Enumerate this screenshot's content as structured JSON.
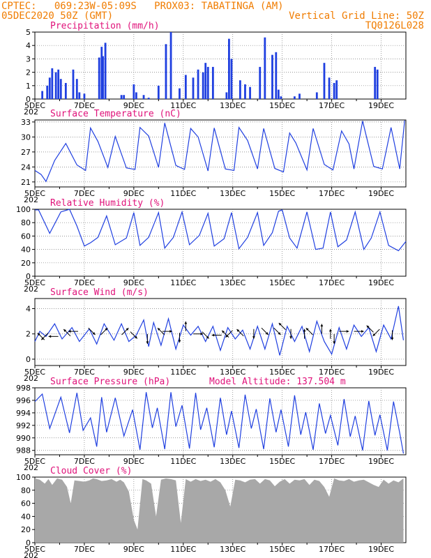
{
  "header": {
    "line1": "CPTEC:   069:23W-05:09S   PROX03: TABATINGA (AM)",
    "line2_left": "05DEC2020 50Z (GMT)",
    "line2_right": "Vertical Grid Line: 50Z",
    "line3_right": "TQ0126L028"
  },
  "colors": {
    "header": "#f07c00",
    "title": "#e0127a",
    "line": "#1f3fe0",
    "cloud": "#a8a8a8"
  },
  "x_axis": {
    "start": "05DEC",
    "end": "20DEC",
    "ticks": [
      "5DEC",
      "7DEC",
      "9DEC",
      "11DEC",
      "13DEC",
      "15DEC",
      "17DEC",
      "19DEC"
    ],
    "year_fragment": "202"
  },
  "chart_data": [
    {
      "type": "bar",
      "title": "Precipitation (mm/h)",
      "ylim": [
        0,
        5
      ],
      "yticks": [
        "0",
        "1",
        "2",
        "3",
        "4",
        "5"
      ],
      "x_days": [
        5.3,
        5.5,
        5.6,
        5.7,
        5.85,
        5.95,
        6.05,
        6.25,
        6.55,
        6.7,
        6.8,
        7.0,
        7.6,
        7.7,
        7.75,
        7.85,
        8.5,
        8.6,
        9.0,
        9.1,
        9.4,
        9.6,
        10.0,
        10.3,
        10.5,
        10.85,
        11.1,
        11.4,
        11.6,
        11.8,
        11.9,
        12.0,
        12.2,
        12.75,
        12.85,
        12.95,
        13.3,
        13.5,
        13.7,
        14.1,
        14.3,
        14.6,
        14.75,
        14.85,
        14.95,
        15.5,
        15.7,
        16.4,
        16.7,
        16.9,
        17.1,
        17.2,
        18.75,
        18.85
      ],
      "values": [
        0.6,
        1.0,
        1.6,
        2.3,
        2.0,
        2.2,
        1.5,
        1.2,
        2.2,
        1.5,
        0.5,
        0.4,
        3.1,
        3.9,
        3.2,
        4.2,
        0.3,
        0.3,
        1.1,
        0.5,
        0.3,
        0.1,
        1.0,
        4.1,
        5.0,
        0.8,
        1.8,
        1.6,
        2.2,
        2.0,
        2.7,
        2.4,
        2.4,
        0.5,
        4.5,
        3.0,
        1.4,
        1.1,
        0.9,
        2.4,
        4.6,
        3.3,
        3.5,
        0.7,
        0.2,
        0.2,
        0.4,
        0.5,
        2.7,
        1.6,
        1.2,
        1.4,
        2.4,
        2.2
      ]
    },
    {
      "type": "line",
      "title": "Surface Temperature (nC)",
      "ylim": [
        20,
        33.4
      ],
      "yticks": [
        "21",
        "24",
        "27",
        "30",
        "33"
      ],
      "x_days": [
        5.0,
        5.25,
        5.45,
        5.8,
        6.25,
        6.7,
        7.05,
        7.25,
        7.55,
        7.95,
        8.25,
        8.7,
        9.05,
        9.25,
        9.6,
        10.0,
        10.25,
        10.7,
        11.05,
        11.3,
        11.6,
        12.0,
        12.25,
        12.7,
        13.05,
        13.25,
        13.6,
        14.0,
        14.25,
        14.7,
        15.05,
        15.3,
        15.55,
        16.0,
        16.25,
        16.7,
        17.05,
        17.4,
        17.7,
        17.9,
        18.25,
        18.7,
        19.05,
        19.4,
        19.75,
        19.95
      ],
      "values": [
        23.3,
        22.5,
        21.1,
        25.3,
        28.7,
        24.4,
        23.3,
        31.8,
        29.1,
        23.9,
        30.1,
        23.8,
        23.5,
        31.9,
        30.2,
        23.9,
        32.8,
        24.3,
        23.5,
        31.7,
        30.0,
        23.2,
        31.8,
        23.6,
        23.3,
        31.9,
        29.3,
        23.6,
        31.7,
        23.7,
        23.0,
        30.8,
        28.8,
        23.4,
        31.7,
        24.5,
        23.4,
        31.2,
        28.6,
        23.6,
        33.2,
        24.1,
        23.6,
        31.9,
        23.6,
        33.3
      ]
    },
    {
      "type": "line",
      "title": "Relative Humidity (%)",
      "ylim": [
        0,
        100
      ],
      "yticks": [
        "0",
        "20",
        "40",
        "60",
        "80",
        "100"
      ],
      "x_days": [
        5.0,
        5.15,
        5.6,
        6.05,
        6.4,
        6.7,
        7.0,
        7.25,
        7.55,
        7.9,
        8.25,
        8.7,
        9.0,
        9.25,
        9.6,
        10.0,
        10.25,
        10.6,
        10.95,
        11.25,
        11.65,
        12.0,
        12.25,
        12.65,
        12.95,
        13.25,
        13.6,
        14.0,
        14.25,
        14.6,
        14.85,
        15.0,
        15.3,
        15.6,
        16.0,
        16.35,
        16.65,
        16.95,
        17.25,
        17.6,
        17.95,
        18.3,
        18.6,
        18.95,
        19.3,
        19.7,
        20.0
      ],
      "values": [
        99,
        99,
        64,
        96,
        100,
        75,
        45,
        50,
        58,
        90,
        47,
        57,
        95,
        46,
        58,
        95,
        42,
        58,
        96,
        47,
        61,
        94,
        45,
        56,
        95,
        41,
        58,
        95,
        46,
        65,
        97,
        99,
        57,
        42,
        96,
        40,
        42,
        96,
        44,
        54,
        96,
        40,
        57,
        96,
        46,
        38,
        52
      ]
    },
    {
      "type": "line",
      "title": "Surface Wind (m/s)",
      "ylim": [
        -0.5,
        4.8
      ],
      "yticks": [
        "0",
        "2",
        "4"
      ],
      "x_days": [
        5.0,
        5.2,
        5.45,
        5.8,
        6.1,
        6.5,
        6.8,
        7.2,
        7.5,
        7.8,
        8.2,
        8.5,
        8.8,
        9.1,
        9.4,
        9.6,
        9.8,
        10.1,
        10.4,
        10.7,
        11.0,
        11.3,
        11.6,
        11.9,
        12.2,
        12.5,
        12.8,
        13.1,
        13.4,
        13.7,
        14.0,
        14.3,
        14.6,
        14.9,
        15.2,
        15.5,
        15.8,
        16.1,
        16.4,
        16.7,
        17.0,
        17.3,
        17.6,
        17.9,
        18.2,
        18.5,
        18.8,
        19.1,
        19.4,
        19.7,
        19.9
      ],
      "values": [
        1.4,
        2.2,
        1.8,
        2.8,
        1.6,
        2.5,
        1.4,
        2.4,
        1.2,
        2.8,
        1.5,
        2.8,
        1.4,
        1.9,
        3.1,
        1.0,
        2.9,
        1.1,
        3.2,
        0.8,
        2.7,
        1.9,
        2.6,
        1.4,
        2.6,
        0.7,
        2.5,
        1.6,
        2.3,
        0.8,
        2.6,
        0.8,
        2.8,
        0.3,
        2.6,
        1.4,
        2.6,
        0.6,
        3.0,
        1.4,
        0.4,
        2.5,
        0.8,
        2.7,
        1.8,
        2.5,
        0.6,
        2.7,
        1.6,
        4.2,
        1.5
      ],
      "arrows": [
        {
          "x": 5.25,
          "speed": 1.8,
          "dir": "NW"
        },
        {
          "x": 5.4,
          "speed": 1.8,
          "dir": "SW"
        },
        {
          "x": 5.75,
          "speed": 1.8,
          "dir": "W"
        },
        {
          "x": 6.3,
          "speed": 2.1,
          "dir": "NW"
        },
        {
          "x": 6.55,
          "speed": 2.2,
          "dir": "W"
        },
        {
          "x": 7.3,
          "speed": 2.2,
          "dir": "SE"
        },
        {
          "x": 7.8,
          "speed": 2.2,
          "dir": "NE"
        },
        {
          "x": 8.65,
          "speed": 2.2,
          "dir": "NE"
        },
        {
          "x": 9.0,
          "speed": 1.9,
          "dir": "SE"
        },
        {
          "x": 9.55,
          "speed": 1.6,
          "dir": "S"
        },
        {
          "x": 10.1,
          "speed": 2.2,
          "dir": "NW"
        },
        {
          "x": 10.35,
          "speed": 2.2,
          "dir": "E"
        },
        {
          "x": 10.85,
          "speed": 1.7,
          "dir": "S"
        },
        {
          "x": 11.1,
          "speed": 2.6,
          "dir": "N"
        },
        {
          "x": 11.6,
          "speed": 2.0,
          "dir": "E"
        },
        {
          "x": 11.9,
          "speed": 1.9,
          "dir": "SE"
        },
        {
          "x": 12.35,
          "speed": 1.9,
          "dir": "W"
        },
        {
          "x": 12.7,
          "speed": 2.0,
          "dir": "NW"
        },
        {
          "x": 12.85,
          "speed": 2.0,
          "dir": "SW"
        },
        {
          "x": 13.3,
          "speed": 2.1,
          "dir": "NW"
        },
        {
          "x": 13.85,
          "speed": 2.0,
          "dir": "S"
        },
        {
          "x": 14.3,
          "speed": 2.2,
          "dir": "SE"
        },
        {
          "x": 14.8,
          "speed": 2.2,
          "dir": "SE"
        },
        {
          "x": 15.0,
          "speed": 2.6,
          "dir": "NW"
        },
        {
          "x": 15.35,
          "speed": 2.0,
          "dir": "S"
        },
        {
          "x": 15.9,
          "speed": 2.0,
          "dir": "N"
        },
        {
          "x": 16.1,
          "speed": 2.2,
          "dir": "NW"
        },
        {
          "x": 16.6,
          "speed": 2.4,
          "dir": "N"
        },
        {
          "x": 16.95,
          "speed": 2.0,
          "dir": "N"
        },
        {
          "x": 17.1,
          "speed": 1.6,
          "dir": "S"
        },
        {
          "x": 17.5,
          "speed": 2.2,
          "dir": "E"
        },
        {
          "x": 18.1,
          "speed": 2.2,
          "dir": "E"
        },
        {
          "x": 18.55,
          "speed": 2.4,
          "dir": "NW"
        },
        {
          "x": 18.8,
          "speed": 2.1,
          "dir": "SW"
        },
        {
          "x": 19.45,
          "speed": 1.9,
          "dir": "S"
        }
      ]
    },
    {
      "type": "line",
      "title": "Surface Pressure (hPa)",
      "subtitle": "Model Altitude: 137.504 m",
      "ylim": [
        987.3,
        998
      ],
      "yticks": [
        "988",
        "990",
        "992",
        "994",
        "996",
        "998"
      ],
      "x_days": [
        5.0,
        5.3,
        5.6,
        6.05,
        6.4,
        6.7,
        6.95,
        7.25,
        7.5,
        7.7,
        7.9,
        8.25,
        8.6,
        8.95,
        9.25,
        9.5,
        9.75,
        9.95,
        10.25,
        10.5,
        10.7,
        10.95,
        11.25,
        11.5,
        11.7,
        11.95,
        12.25,
        12.5,
        12.75,
        12.95,
        13.25,
        13.5,
        13.75,
        13.95,
        14.25,
        14.5,
        14.75,
        14.95,
        15.25,
        15.5,
        15.75,
        15.95,
        16.25,
        16.5,
        16.75,
        16.95,
        17.25,
        17.5,
        17.75,
        17.95,
        18.25,
        18.5,
        18.75,
        18.95,
        19.25,
        19.5,
        19.75,
        19.9
      ],
      "values": [
        995.8,
        997.0,
        991.5,
        996.5,
        990.8,
        997.2,
        991.2,
        993.2,
        988.6,
        996.5,
        990.9,
        996.4,
        990.3,
        994.5,
        988.1,
        997.3,
        991.6,
        994.8,
        988.2,
        997.3,
        991.8,
        995.2,
        988.3,
        997.2,
        991.3,
        994.8,
        988.5,
        996.4,
        990.5,
        994.3,
        988.4,
        996.9,
        991.5,
        994.6,
        988.2,
        996.3,
        990.9,
        994.5,
        988.6,
        996.8,
        990.5,
        994.1,
        988.1,
        995.5,
        990.7,
        993.6,
        988.8,
        996.2,
        990.2,
        993.5,
        988.0,
        995.9,
        990.4,
        993.7,
        988.0,
        995.8,
        990.8,
        987.5
      ]
    },
    {
      "type": "area",
      "title": "Cloud Cover (%)",
      "ylim": [
        0,
        100
      ],
      "yticks": [
        "0",
        "20",
        "40",
        "60",
        "80",
        "100"
      ],
      "x_days": [
        5.0,
        5.2,
        5.4,
        5.55,
        5.7,
        5.9,
        6.1,
        6.3,
        6.45,
        6.6,
        6.8,
        7.0,
        7.2,
        7.35,
        7.5,
        7.7,
        7.9,
        8.1,
        8.3,
        8.45,
        8.6,
        8.8,
        9.0,
        9.15,
        9.35,
        9.5,
        9.7,
        9.9,
        10.1,
        10.3,
        10.5,
        10.7,
        10.9,
        11.1,
        11.3,
        11.5,
        11.7,
        11.9,
        12.1,
        12.3,
        12.5,
        12.7,
        12.9,
        13.1,
        13.3,
        13.5,
        13.7,
        13.9,
        14.1,
        14.3,
        14.5,
        14.7,
        14.9,
        15.1,
        15.3,
        15.5,
        15.7,
        15.9,
        16.1,
        16.3,
        16.5,
        16.7,
        16.9,
        17.1,
        17.3,
        17.5,
        17.7,
        17.9,
        18.1,
        18.3,
        18.5,
        18.7,
        18.9,
        19.1,
        19.3,
        19.5,
        19.7,
        19.9
      ],
      "values": [
        98,
        96,
        90,
        97,
        88,
        98,
        96,
        85,
        60,
        95,
        94,
        93,
        95,
        98,
        97,
        94,
        95,
        97,
        93,
        96,
        92,
        78,
        35,
        20,
        97,
        95,
        90,
        40,
        96,
        98,
        97,
        95,
        30,
        97,
        93,
        97,
        94,
        96,
        93,
        97,
        92,
        80,
        55,
        96,
        95,
        92,
        96,
        97,
        90,
        97,
        95,
        86,
        93,
        97,
        90,
        96,
        95,
        97,
        88,
        96,
        94,
        85,
        70,
        98,
        95,
        94,
        97,
        93,
        95,
        96,
        92,
        88,
        85,
        96,
        90,
        95,
        92,
        98
      ]
    }
  ]
}
